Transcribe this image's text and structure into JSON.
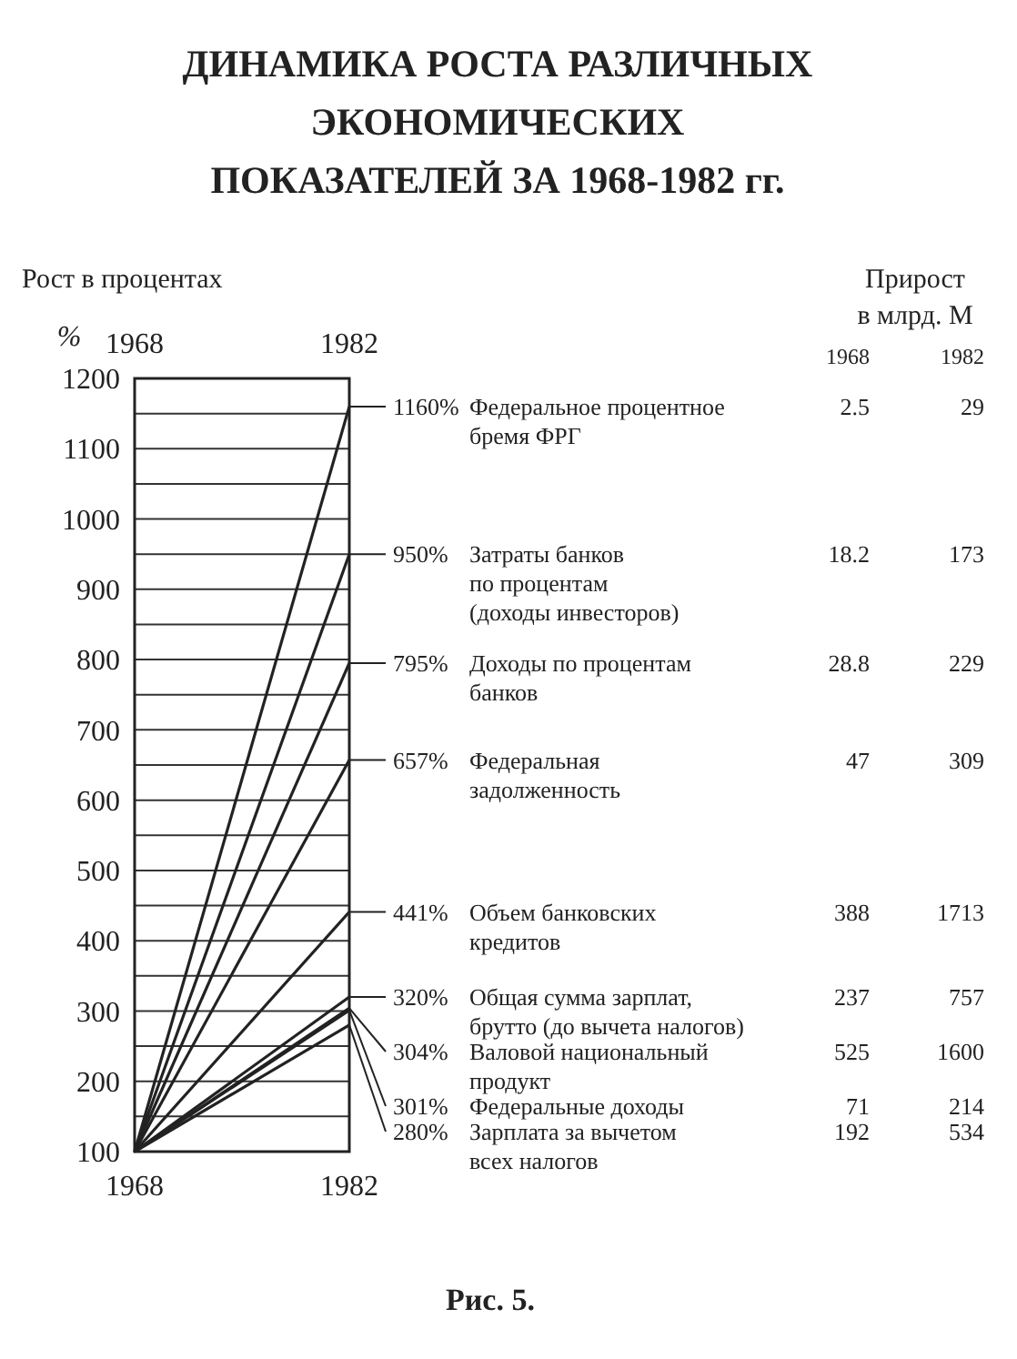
{
  "chart_data": {
    "type": "line",
    "title": "ДИНАМИКА РОСТА РАЗЛИЧНЫХ\nЭКОНОМИЧЕСКИХ\nПОКАЗАТЕЛЕЙ ЗА 1968-1982 гг.",
    "ylabel": "Рост в процентах",
    "x": [
      1968,
      1982
    ],
    "xlim": [
      1968,
      1982
    ],
    "xticks": [
      1968,
      1982
    ],
    "x2lim": [
      1968,
      1982
    ],
    "x2ticks": [
      1968,
      1982
    ],
    "ylim": [
      100,
      1200
    ],
    "yticks": [
      100,
      {
        "value": 150,
        "label": null
      },
      200,
      {
        "value": 250,
        "label": null
      },
      300,
      {
        "value": 350,
        "label": null
      },
      400,
      {
        "value": 450,
        "label": null
      },
      500,
      {
        "value": 550,
        "label": null
      },
      600,
      {
        "value": 650,
        "label": null
      },
      700,
      {
        "value": 750,
        "label": null
      },
      800,
      {
        "value": 850,
        "label": null
      },
      900,
      {
        "value": 950,
        "label": null
      },
      1000,
      {
        "value": 1050,
        "label": null
      },
      1100,
      {
        "value": 1150,
        "label": null
      },
      1200
    ],
    "grid": "y",
    "series": [
      {
        "name": "Федеральное процентное\nбремя ФРГ",
        "color": "#222222",
        "values": [
          100,
          1160
        ],
        "value_labels": [
          null,
          "1160%"
        ]
      },
      {
        "name": "Затраты банков\nпо процентам\n(доходы инвесторов)",
        "color": "#222222",
        "values": [
          100,
          950
        ],
        "value_labels": [
          null,
          "950%"
        ]
      },
      {
        "name": "Доходы по процентам\nбанков",
        "color": "#222222",
        "values": [
          100,
          795
        ],
        "value_labels": [
          null,
          "795%"
        ]
      },
      {
        "name": "Федеральная\nзадолженность",
        "color": "#222222",
        "values": [
          100,
          657
        ],
        "value_labels": [
          null,
          "657%"
        ]
      },
      {
        "name": "Объем банковских\nкредитов",
        "color": "#222222",
        "values": [
          100,
          441
        ],
        "value_labels": [
          null,
          "441%"
        ]
      },
      {
        "name": "Общая сумма зарплат,\nбрутто (до вычета налогов)",
        "color": "#222222",
        "values": [
          100,
          320
        ],
        "value_labels": [
          null,
          "320%"
        ]
      },
      {
        "name": "Валовой национальный\nпродукт",
        "color": "#222222",
        "values": [
          100,
          304
        ],
        "value_labels": [
          null,
          "304%"
        ]
      },
      {
        "name": "Федеральные доходы",
        "color": "#222222",
        "values": [
          100,
          301
        ],
        "value_labels": [
          null,
          "301%"
        ]
      },
      {
        "name": "Зарплата за вычетом\nвсех налогов",
        "color": "#222222",
        "values": [
          100,
          280
        ],
        "value_labels": [
          null,
          "280%"
        ]
      }
    ],
    "annotations": [
      "%",
      "Прирост\nв млрд. М",
      "1968",
      "1982",
      "2.5",
      "29",
      "18.2",
      "173",
      "28.8",
      "229",
      "47",
      "309",
      "388",
      "1713",
      "237",
      "757",
      "525",
      "1600",
      "71",
      "214",
      "192",
      "534",
      "Рис. 5."
    ]
  }
}
